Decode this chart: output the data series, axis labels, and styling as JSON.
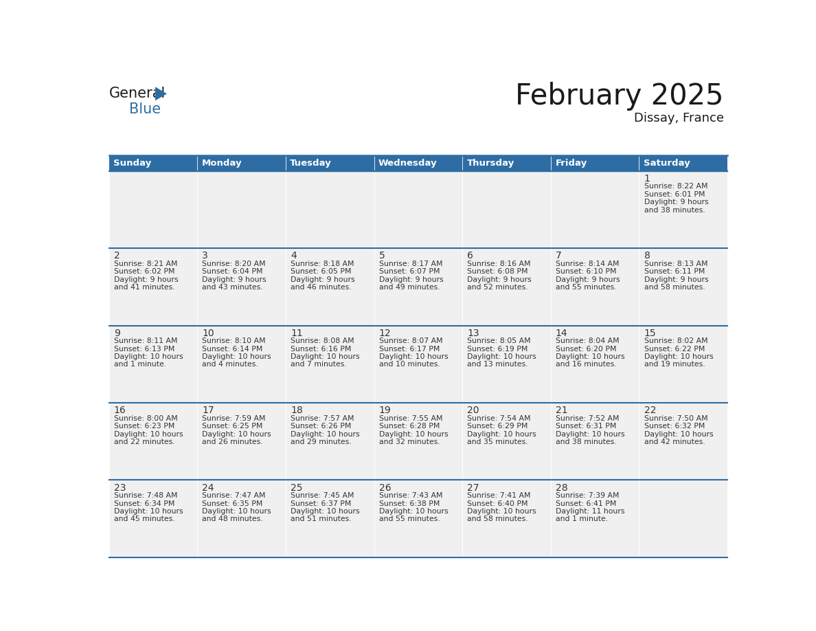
{
  "title": "February 2025",
  "subtitle": "Dissay, France",
  "header_bg": "#2E6DA4",
  "header_text_color": "#FFFFFF",
  "cell_bg": "#F0F0F0",
  "border_color": "#2E6DA4",
  "day_headers": [
    "Sunday",
    "Monday",
    "Tuesday",
    "Wednesday",
    "Thursday",
    "Friday",
    "Saturday"
  ],
  "title_color": "#1a1a1a",
  "subtitle_color": "#1a1a1a",
  "days": [
    {
      "date": 1,
      "col": 6,
      "row": 0,
      "sunrise": "8:22 AM",
      "sunset": "6:01 PM",
      "daylight_hrs": "9",
      "daylight_min": "38 minutes."
    },
    {
      "date": 2,
      "col": 0,
      "row": 1,
      "sunrise": "8:21 AM",
      "sunset": "6:02 PM",
      "daylight_hrs": "9",
      "daylight_min": "41 minutes."
    },
    {
      "date": 3,
      "col": 1,
      "row": 1,
      "sunrise": "8:20 AM",
      "sunset": "6:04 PM",
      "daylight_hrs": "9",
      "daylight_min": "43 minutes."
    },
    {
      "date": 4,
      "col": 2,
      "row": 1,
      "sunrise": "8:18 AM",
      "sunset": "6:05 PM",
      "daylight_hrs": "9",
      "daylight_min": "46 minutes."
    },
    {
      "date": 5,
      "col": 3,
      "row": 1,
      "sunrise": "8:17 AM",
      "sunset": "6:07 PM",
      "daylight_hrs": "9",
      "daylight_min": "49 minutes."
    },
    {
      "date": 6,
      "col": 4,
      "row": 1,
      "sunrise": "8:16 AM",
      "sunset": "6:08 PM",
      "daylight_hrs": "9",
      "daylight_min": "52 minutes."
    },
    {
      "date": 7,
      "col": 5,
      "row": 1,
      "sunrise": "8:14 AM",
      "sunset": "6:10 PM",
      "daylight_hrs": "9",
      "daylight_min": "55 minutes."
    },
    {
      "date": 8,
      "col": 6,
      "row": 1,
      "sunrise": "8:13 AM",
      "sunset": "6:11 PM",
      "daylight_hrs": "9",
      "daylight_min": "58 minutes."
    },
    {
      "date": 9,
      "col": 0,
      "row": 2,
      "sunrise": "8:11 AM",
      "sunset": "6:13 PM",
      "daylight_hrs": "10",
      "daylight_min": "1 minute."
    },
    {
      "date": 10,
      "col": 1,
      "row": 2,
      "sunrise": "8:10 AM",
      "sunset": "6:14 PM",
      "daylight_hrs": "10",
      "daylight_min": "4 minutes."
    },
    {
      "date": 11,
      "col": 2,
      "row": 2,
      "sunrise": "8:08 AM",
      "sunset": "6:16 PM",
      "daylight_hrs": "10",
      "daylight_min": "7 minutes."
    },
    {
      "date": 12,
      "col": 3,
      "row": 2,
      "sunrise": "8:07 AM",
      "sunset": "6:17 PM",
      "daylight_hrs": "10",
      "daylight_min": "10 minutes."
    },
    {
      "date": 13,
      "col": 4,
      "row": 2,
      "sunrise": "8:05 AM",
      "sunset": "6:19 PM",
      "daylight_hrs": "10",
      "daylight_min": "13 minutes."
    },
    {
      "date": 14,
      "col": 5,
      "row": 2,
      "sunrise": "8:04 AM",
      "sunset": "6:20 PM",
      "daylight_hrs": "10",
      "daylight_min": "16 minutes."
    },
    {
      "date": 15,
      "col": 6,
      "row": 2,
      "sunrise": "8:02 AM",
      "sunset": "6:22 PM",
      "daylight_hrs": "10",
      "daylight_min": "19 minutes."
    },
    {
      "date": 16,
      "col": 0,
      "row": 3,
      "sunrise": "8:00 AM",
      "sunset": "6:23 PM",
      "daylight_hrs": "10",
      "daylight_min": "22 minutes."
    },
    {
      "date": 17,
      "col": 1,
      "row": 3,
      "sunrise": "7:59 AM",
      "sunset": "6:25 PM",
      "daylight_hrs": "10",
      "daylight_min": "26 minutes."
    },
    {
      "date": 18,
      "col": 2,
      "row": 3,
      "sunrise": "7:57 AM",
      "sunset": "6:26 PM",
      "daylight_hrs": "10",
      "daylight_min": "29 minutes."
    },
    {
      "date": 19,
      "col": 3,
      "row": 3,
      "sunrise": "7:55 AM",
      "sunset": "6:28 PM",
      "daylight_hrs": "10",
      "daylight_min": "32 minutes."
    },
    {
      "date": 20,
      "col": 4,
      "row": 3,
      "sunrise": "7:54 AM",
      "sunset": "6:29 PM",
      "daylight_hrs": "10",
      "daylight_min": "35 minutes."
    },
    {
      "date": 21,
      "col": 5,
      "row": 3,
      "sunrise": "7:52 AM",
      "sunset": "6:31 PM",
      "daylight_hrs": "10",
      "daylight_min": "38 minutes."
    },
    {
      "date": 22,
      "col": 6,
      "row": 3,
      "sunrise": "7:50 AM",
      "sunset": "6:32 PM",
      "daylight_hrs": "10",
      "daylight_min": "42 minutes."
    },
    {
      "date": 23,
      "col": 0,
      "row": 4,
      "sunrise": "7:48 AM",
      "sunset": "6:34 PM",
      "daylight_hrs": "10",
      "daylight_min": "45 minutes."
    },
    {
      "date": 24,
      "col": 1,
      "row": 4,
      "sunrise": "7:47 AM",
      "sunset": "6:35 PM",
      "daylight_hrs": "10",
      "daylight_min": "48 minutes."
    },
    {
      "date": 25,
      "col": 2,
      "row": 4,
      "sunrise": "7:45 AM",
      "sunset": "6:37 PM",
      "daylight_hrs": "10",
      "daylight_min": "51 minutes."
    },
    {
      "date": 26,
      "col": 3,
      "row": 4,
      "sunrise": "7:43 AM",
      "sunset": "6:38 PM",
      "daylight_hrs": "10",
      "daylight_min": "55 minutes."
    },
    {
      "date": 27,
      "col": 4,
      "row": 4,
      "sunrise": "7:41 AM",
      "sunset": "6:40 PM",
      "daylight_hrs": "10",
      "daylight_min": "58 minutes."
    },
    {
      "date": 28,
      "col": 5,
      "row": 4,
      "sunrise": "7:39 AM",
      "sunset": "6:41 PM",
      "daylight_hrs": "11",
      "daylight_min": "1 minute."
    }
  ],
  "num_rows": 5,
  "num_cols": 7
}
